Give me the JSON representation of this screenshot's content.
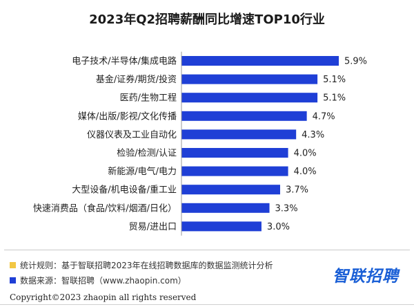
{
  "title": "2023年Q2招聘薪酬同比增速TOP10行业",
  "chart_data": {
    "type": "bar",
    "orientation": "horizontal",
    "title": "2023年Q2招聘薪酬同比增速TOP10行业",
    "categories": [
      "电子技术/半导体/集成电路",
      "基金/证券/期货/投资",
      "医药/生物工程",
      "媒体/出版/影视/文化传播",
      "仪器仪表及工业自动化",
      "检验/检测/认证",
      "新能源/电气/电力",
      "大型设备/机电设备/重工业",
      "快速消费品（食品/饮料/烟酒/日化）",
      "贸易/进出口"
    ],
    "values": [
      5.9,
      5.1,
      5.1,
      4.7,
      4.3,
      4.0,
      4.0,
      3.7,
      3.3,
      3.0
    ],
    "value_labels": [
      "5.9%",
      "5.1%",
      "5.1%",
      "4.7%",
      "4.3%",
      "4.0%",
      "4.0%",
      "3.7%",
      "3.3%",
      "3.0%"
    ],
    "xlim": [
      0,
      6
    ],
    "grid": false,
    "legend": "none",
    "bar_color": "#1f3fd6"
  },
  "notes": [
    {
      "text": "统计规则：基于智联招聘2023年在线招聘数据库的数据监测统计分析",
      "color": "#f2c744"
    },
    {
      "text": "数据来源：智联招聘（www.zhaopin.com）",
      "color": "#1f3fd6"
    }
  ],
  "brand": {
    "name": "智联招聘",
    "color": "#1a5fd6"
  },
  "copyright": "Copyright©2023 zhaopin all rights reserved"
}
